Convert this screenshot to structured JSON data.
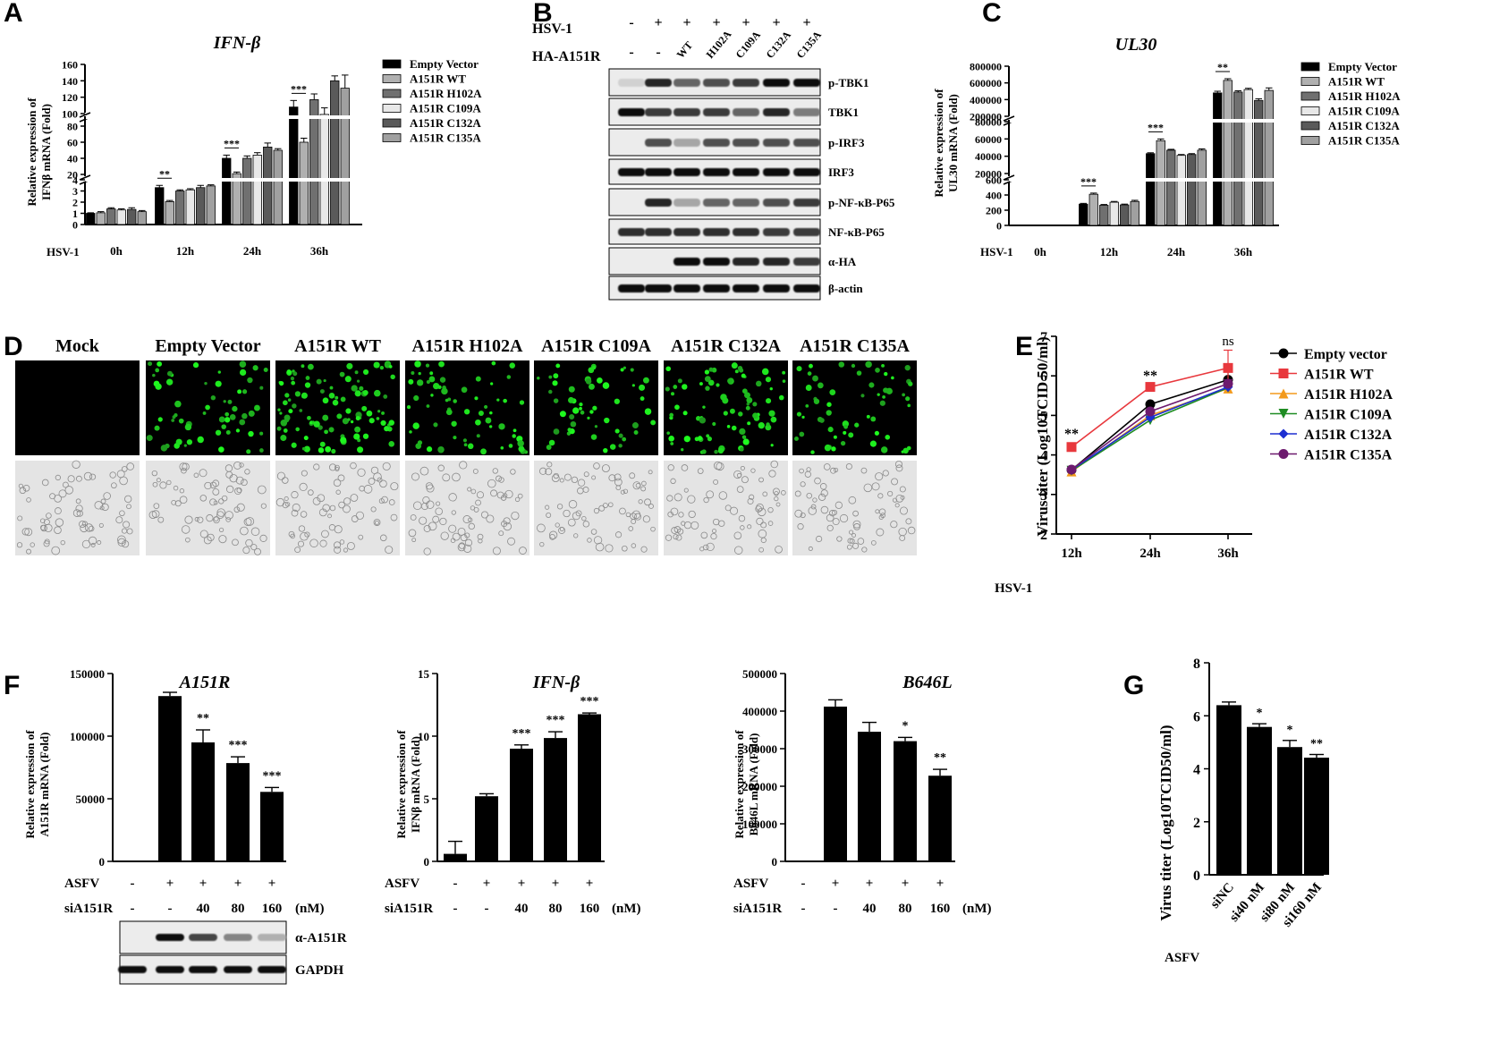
{
  "panel_labels": [
    "A",
    "B",
    "C",
    "D",
    "E",
    "F",
    "G"
  ],
  "colors": {
    "empty": "#000000",
    "wt": "#b0b0b0",
    "h102a": "#707070",
    "c109a": "#e8e8e8",
    "c132a": "#5a5a5a",
    "c135a": "#a0a0a0"
  },
  "panel_B": {
    "hsv_label": "HSV-1",
    "ha_label": "HA-A151R",
    "hsv_marks": [
      "-",
      "+",
      "+",
      "+",
      "+",
      "+",
      "+"
    ],
    "ha_marks": [
      "-",
      "-",
      "WT",
      "H102A",
      "C109A",
      "C132A",
      "C135A"
    ],
    "blots": [
      "p-TBK1",
      "TBK1",
      "p-IRF3",
      "IRF3",
      "p-NF-κB-P65",
      "NF-κB-P65",
      "α-HA",
      "β-actin"
    ]
  },
  "panel_D": {
    "columns": [
      "Mock",
      "Empty Vector",
      "A151R WT",
      "A151R H102A",
      "A151R C109A",
      "A151R C132A",
      "A151R C135A"
    ],
    "fluorescence_level": [
      0,
      0.55,
      0.95,
      0.6,
      0.5,
      0.75,
      0.55
    ]
  },
  "panel_F_blot": {
    "rows": [
      "α-A151R",
      "GAPDH"
    ],
    "band_intensity": [
      0,
      1,
      0.75,
      0.45,
      0.25
    ]
  },
  "chart_data": [
    {
      "id": "A",
      "type": "bar",
      "title": "IFN-β",
      "ylabel_lines": [
        "Relative expression of",
        "IFNβ mRNA (Fold)"
      ],
      "row_label": "HSV-1",
      "categories": [
        "0h",
        "12h",
        "24h",
        "36h"
      ],
      "ytick_labels": [
        "0",
        "1",
        "2",
        "3",
        "4",
        "20",
        "40",
        "60",
        "80",
        "100",
        "120",
        "140",
        "160"
      ],
      "broken_axis": true,
      "series": [
        {
          "name": "Empty Vector",
          "values": [
            1,
            3.3,
            40,
            108
          ],
          "err": [
            0.05,
            0.2,
            4,
            8
          ]
        },
        {
          "name": "A151R WT",
          "values": [
            1.05,
            2.05,
            21,
            60
          ],
          "err": [
            0.1,
            0.1,
            2,
            5
          ]
        },
        {
          "name": "A151R H102A",
          "values": [
            1.4,
            3,
            40,
            117
          ],
          "err": [
            0.1,
            0.1,
            3,
            7
          ]
        },
        {
          "name": "A151R C109A",
          "values": [
            1.3,
            3.1,
            44,
            99
          ],
          "err": [
            0.1,
            0.1,
            3,
            8
          ]
        },
        {
          "name": "A151R C132A",
          "values": [
            1.35,
            3.3,
            54,
            140
          ],
          "err": [
            0.15,
            0.2,
            5,
            6
          ]
        },
        {
          "name": "A151R C135A",
          "values": [
            1.15,
            3.45,
            50,
            131
          ],
          "err": [
            0.1,
            0.1,
            2,
            16
          ]
        }
      ],
      "sig": [
        {
          "cat": 1,
          "text": "**"
        },
        {
          "cat": 2,
          "text": "***"
        },
        {
          "cat": 3,
          "text": "***"
        }
      ]
    },
    {
      "id": "C",
      "type": "bar",
      "title": "UL30",
      "ylabel_lines": [
        "Relative expression of",
        "UL30 mRNA (Fold)"
      ],
      "row_label": "HSV-1",
      "categories": [
        "0h",
        "12h",
        "24h",
        "36h"
      ],
      "ytick_labels": [
        "0",
        "200",
        "400",
        "600",
        "20000",
        "40000",
        "60000",
        "80000",
        "200000",
        "400000",
        "600000",
        "800000"
      ],
      "broken_axis": true,
      "series": [
        {
          "name": "Empty Vector",
          "values": [
            0,
            280,
            43000,
            480000
          ],
          "err": [
            0,
            10,
            1000,
            20000
          ]
        },
        {
          "name": "A151R WT",
          "values": [
            0,
            410,
            58000,
            630000
          ],
          "err": [
            0,
            15,
            2000,
            20000
          ]
        },
        {
          "name": "A151R H102A",
          "values": [
            0,
            265,
            47000,
            490000
          ],
          "err": [
            0,
            10,
            1000,
            15000
          ]
        },
        {
          "name": "A151R C109A",
          "values": [
            0,
            305,
            41000,
            520000
          ],
          "err": [
            0,
            10,
            1000,
            15000
          ]
        },
        {
          "name": "A151R C132A",
          "values": [
            0,
            270,
            42000,
            390000
          ],
          "err": [
            0,
            10,
            1000,
            20000
          ]
        },
        {
          "name": "A151R C135A",
          "values": [
            0,
            315,
            47000,
            510000
          ],
          "err": [
            0,
            15,
            1500,
            30000
          ]
        }
      ],
      "sig": [
        {
          "cat": 1,
          "text": "***"
        },
        {
          "cat": 2,
          "text": "***"
        },
        {
          "cat": 3,
          "text": "**"
        }
      ]
    },
    {
      "id": "E",
      "type": "line",
      "ylabel": "Virus titer (Log10TCID 50/ml)",
      "row_label": "HSV-1",
      "categories": [
        "12h",
        "24h",
        "36h"
      ],
      "ylim": [
        2,
        7
      ],
      "series": [
        {
          "name": "Empty vector",
          "color": "#000000",
          "marker": "circle",
          "values": [
            3.62,
            5.28,
            5.9
          ],
          "err": [
            0,
            0,
            0.3
          ]
        },
        {
          "name": "A151R WT",
          "color": "#e8383d",
          "marker": "square",
          "values": [
            4.2,
            5.72,
            6.2
          ],
          "err": [
            0,
            0,
            0.45
          ]
        },
        {
          "name": "A151R H102A",
          "color": "#f39a1b",
          "marker": "triangle-up",
          "values": [
            3.58,
            5.0,
            5.68
          ],
          "err": [
            0,
            0,
            0.1
          ]
        },
        {
          "name": "A151R C109A",
          "color": "#1e8c22",
          "marker": "triangle-down",
          "values": [
            3.6,
            4.88,
            5.7
          ],
          "err": [
            0,
            0,
            0.1
          ]
        },
        {
          "name": "A151R C132A",
          "color": "#1d2fd1",
          "marker": "diamond",
          "values": [
            3.62,
            4.95,
            5.72
          ],
          "err": [
            0,
            0,
            0.1
          ]
        },
        {
          "name": "A151R C135A",
          "color": "#6d1a6e",
          "marker": "circle",
          "values": [
            3.63,
            5.1,
            5.8
          ],
          "err": [
            0,
            0,
            0.1
          ]
        }
      ],
      "sig": [
        {
          "cat": 0,
          "text": "**"
        },
        {
          "cat": 1,
          "text": "**"
        },
        {
          "cat": 2,
          "text": "ns"
        }
      ]
    },
    {
      "id": "F1",
      "type": "bar",
      "title": "A151R",
      "ylabel_lines": [
        "Relative expression of",
        "A151R mRNA (Fold)"
      ],
      "ylim": [
        0,
        150000
      ],
      "ytick_labels": [
        "0",
        "50000",
        "100000",
        "150000"
      ],
      "row1_label": "ASFV",
      "row1": [
        "-",
        "+",
        "+",
        "+",
        "+"
      ],
      "row2_label": "siA151R",
      "row2": [
        "-",
        "-",
        "40",
        "80",
        "160"
      ],
      "unit": "(nM)",
      "values": [
        0,
        132000,
        95000,
        78500,
        55500
      ],
      "err": [
        0,
        3000,
        10000,
        5000,
        3500
      ],
      "sig": [
        "",
        "",
        "**",
        "***",
        "***"
      ]
    },
    {
      "id": "F2",
      "type": "bar",
      "title": "IFN-β",
      "ylabel_lines": [
        "Relative expression of",
        "IFNβ mRNA (Fold)"
      ],
      "ylim": [
        0,
        15
      ],
      "ytick_labels": [
        "0",
        "5",
        "10",
        "15"
      ],
      "row1_label": "ASFV",
      "row1": [
        "-",
        "+",
        "+",
        "+",
        "+"
      ],
      "row2_label": "siA151R",
      "row2": [
        "-",
        "-",
        "40",
        "80",
        "160"
      ],
      "unit": "(nM)",
      "values": [
        0.6,
        5.2,
        9.0,
        9.85,
        11.75
      ],
      "err": [
        1.0,
        0.2,
        0.3,
        0.5,
        0.1
      ],
      "sig": [
        "",
        "",
        "***",
        "***",
        "***"
      ]
    },
    {
      "id": "F3",
      "type": "bar",
      "title": "B646L",
      "ylabel_lines": [
        "Relative expression of",
        "B646L mRNA (Fold)"
      ],
      "ylim": [
        0,
        500000
      ],
      "ytick_labels": [
        "0",
        "100000",
        "200000",
        "300000",
        "400000",
        "500000"
      ],
      "row1_label": "ASFV",
      "row1": [
        "-",
        "+",
        "+",
        "+",
        "+"
      ],
      "row2_label": "siA151R",
      "row2": [
        "-",
        "-",
        "40",
        "80",
        "160"
      ],
      "unit": "(nM)",
      "values": [
        0,
        412000,
        345000,
        320000,
        228000
      ],
      "err": [
        0,
        18000,
        25000,
        10000,
        17000
      ],
      "sig": [
        "",
        "",
        "",
        "*",
        "**"
      ]
    },
    {
      "id": "G",
      "type": "bar",
      "ylabel": "Virus titer (Log10TCID50/ml)",
      "ylim": [
        0,
        8
      ],
      "ytick_labels": [
        "0",
        "2",
        "4",
        "6",
        "8"
      ],
      "row_label": "ASFV",
      "categories": [
        "siNC",
        "si40 nM",
        "si80 nM",
        "si160 nM"
      ],
      "values": [
        6.4,
        5.58,
        4.82,
        4.42
      ],
      "err": [
        0.12,
        0.12,
        0.25,
        0.12
      ],
      "sig": [
        "",
        "*",
        "*",
        "**"
      ]
    }
  ]
}
